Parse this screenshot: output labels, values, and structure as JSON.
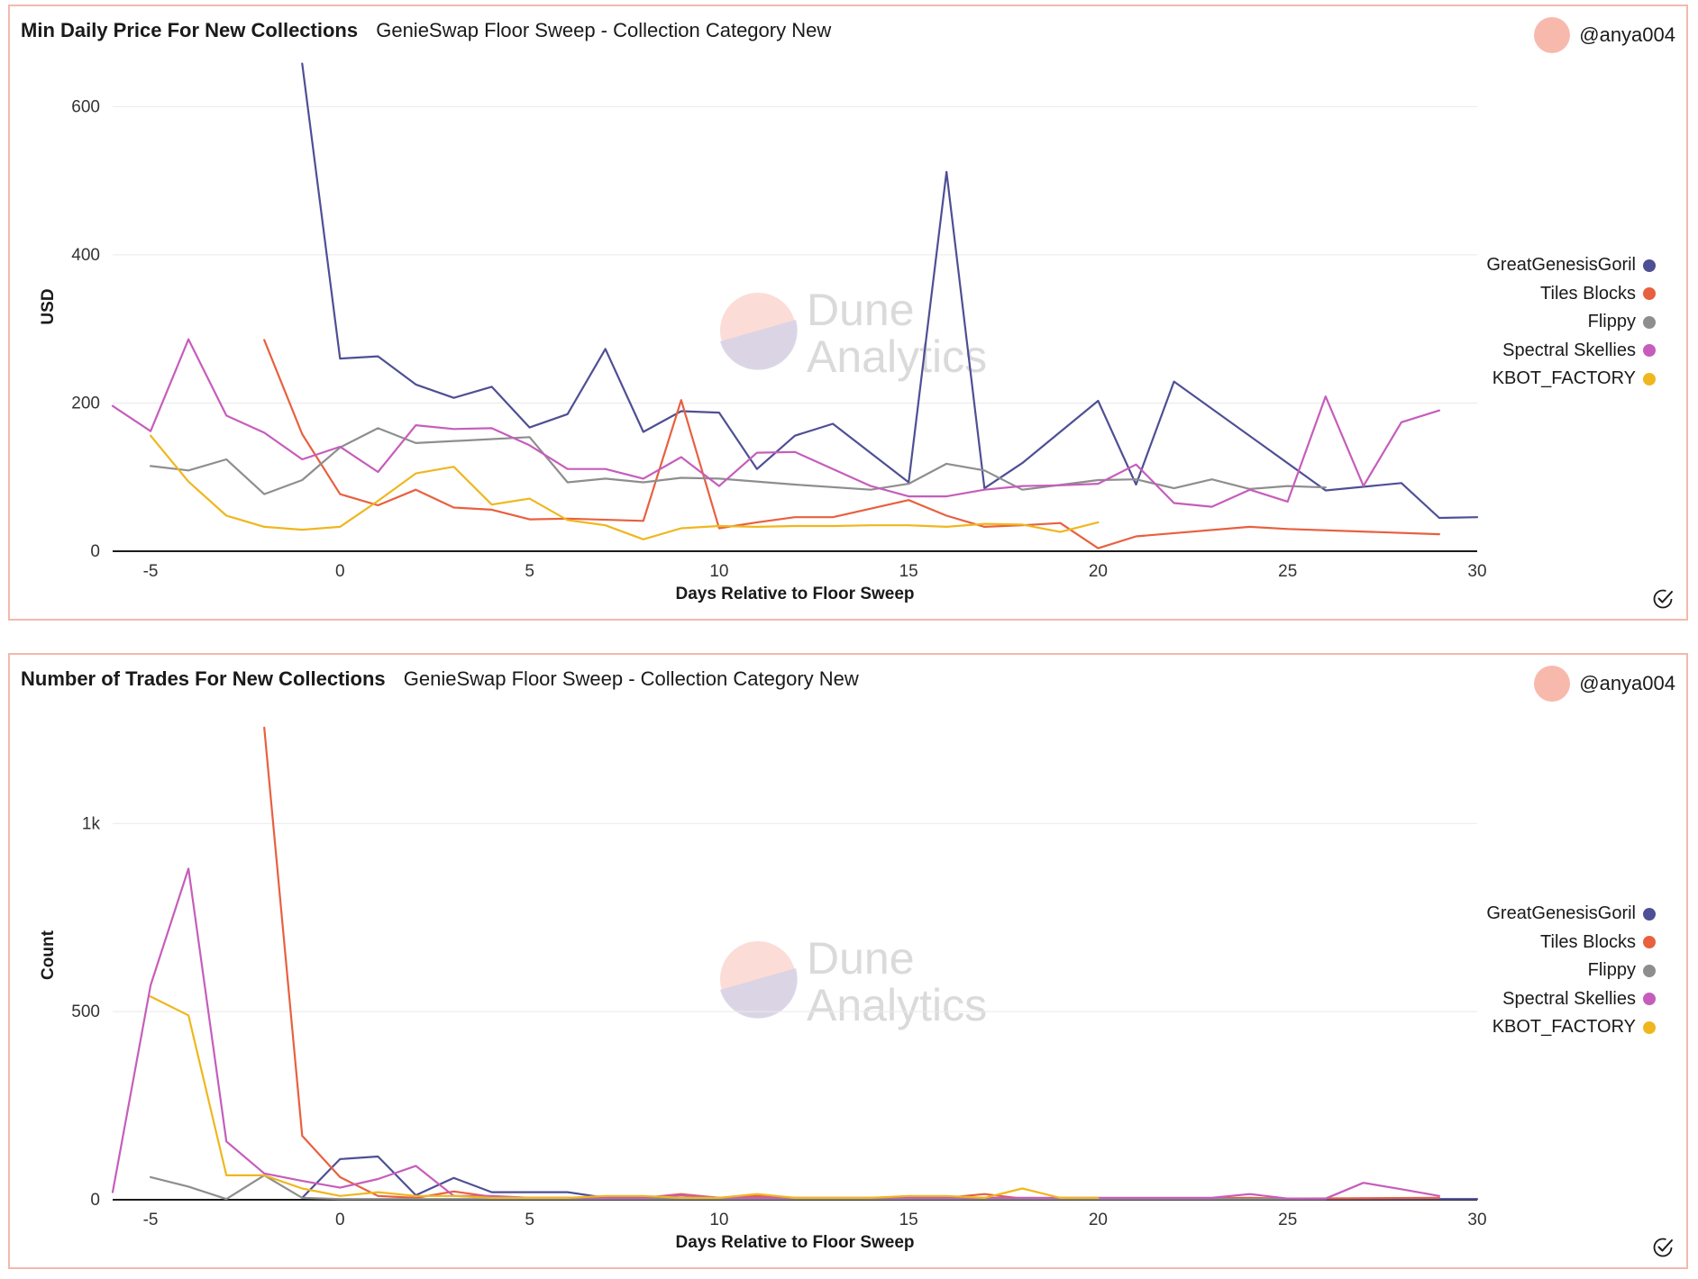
{
  "author": "@anya004",
  "watermark": {
    "line1": "Dune",
    "line2": "Analytics"
  },
  "colors": {
    "GreatGenesisGoril": "#4e4f94",
    "Tiles Blocks": "#e8603f",
    "Flippy": "#8e8e8e",
    "Spectral Skellies": "#c65dbb",
    "KBOT_FACTORY": "#efb71e",
    "avatar": "#f8b9ad",
    "border": "#f4b8ad"
  },
  "panels": [
    {
      "title": "Min Daily Price For New Collections",
      "subtitle": "GenieSwap Floor Sweep - Collection Category New",
      "legend": [
        "GreatGenesisGoril",
        "Tiles Blocks",
        "Flippy",
        "Spectral Skellies",
        "KBOT_FACTORY"
      ]
    },
    {
      "title": "Number of Trades For New Collections",
      "subtitle": "GenieSwap Floor Sweep - Collection Category New",
      "legend": [
        "GreatGenesisGoril",
        "Tiles Blocks",
        "Flippy",
        "Spectral Skellies",
        "KBOT_FACTORY"
      ]
    }
  ],
  "chart_data": [
    {
      "type": "line",
      "title": "Min Daily Price For New Collections",
      "xlabel": "Days Relative to Floor Sweep",
      "ylabel": "USD",
      "xlim": [
        -6,
        30
      ],
      "ylim": [
        0,
        660
      ],
      "xticks": [
        -5,
        0,
        5,
        10,
        15,
        20,
        25,
        30
      ],
      "xtick_labels": [
        "-5",
        "0",
        "5",
        "10",
        "15",
        "20",
        "25",
        "30"
      ],
      "yticks": [
        0,
        200,
        400,
        600
      ],
      "ytick_labels": [
        "0",
        "200",
        "400",
        "600"
      ],
      "grid": true,
      "series": [
        {
          "name": "GreatGenesisGoril",
          "x": [
            -1,
            0,
            1,
            2,
            3,
            4,
            5,
            6,
            7,
            8,
            9,
            10,
            11,
            12,
            13,
            15,
            16,
            17,
            18,
            20,
            21,
            22,
            26,
            28,
            29,
            30
          ],
          "values": [
            658,
            260,
            263,
            225,
            207,
            222,
            167,
            185,
            273,
            161,
            189,
            187,
            111,
            156,
            172,
            93,
            512,
            85,
            119,
            203,
            90,
            229,
            82,
            92,
            45,
            46
          ]
        },
        {
          "name": "Tiles Blocks",
          "x": [
            -2,
            -1,
            0,
            1,
            2,
            3,
            4,
            5,
            6,
            8,
            9,
            10,
            11,
            12,
            13,
            15,
            16,
            17,
            18,
            19,
            20,
            21,
            24,
            25,
            29
          ],
          "values": [
            285,
            158,
            77,
            62,
            83,
            59,
            56,
            43,
            44,
            41,
            204,
            31,
            39,
            46,
            46,
            69,
            48,
            33,
            35,
            38,
            4,
            20,
            33,
            30,
            23
          ]
        },
        {
          "name": "Flippy",
          "x": [
            -5,
            -4,
            -3,
            -2,
            -1,
            0,
            1,
            2,
            5,
            6,
            7,
            8,
            9,
            10,
            12,
            14,
            15,
            16,
            17,
            18,
            20,
            21,
            22,
            23,
            24,
            25,
            26
          ],
          "values": [
            115,
            109,
            124,
            77,
            96,
            140,
            166,
            146,
            154,
            93,
            98,
            93,
            99,
            98,
            90,
            83,
            91,
            118,
            109,
            83,
            96,
            97,
            85,
            97,
            84,
            88,
            86
          ]
        },
        {
          "name": "Spectral Skellies",
          "x": [
            -6,
            -5,
            -4,
            -3,
            -2,
            -1,
            0,
            1,
            2,
            3,
            4,
            5,
            6,
            7,
            8,
            9,
            10,
            11,
            12,
            14,
            15,
            16,
            17,
            18,
            19,
            20,
            21,
            22,
            23,
            24,
            25,
            26,
            27,
            28,
            29
          ],
          "values": [
            196,
            162,
            286,
            183,
            160,
            124,
            141,
            107,
            170,
            165,
            166,
            143,
            111,
            111,
            98,
            127,
            88,
            133,
            134,
            88,
            74,
            74,
            83,
            88,
            89,
            91,
            117,
            65,
            60,
            83,
            67,
            209,
            88,
            174,
            190
          ]
        },
        {
          "name": "KBOT_FACTORY",
          "x": [
            -5,
            -4,
            -3,
            -2,
            -1,
            0,
            1,
            2,
            3,
            4,
            5,
            6,
            7,
            8,
            9,
            10,
            11,
            12,
            13,
            14,
            15,
            16,
            17,
            18,
            19,
            20
          ],
          "values": [
            156,
            94,
            48,
            33,
            29,
            33,
            68,
            105,
            114,
            63,
            71,
            42,
            35,
            16,
            31,
            34,
            33,
            34,
            34,
            35,
            35,
            33,
            37,
            36,
            26,
            39
          ]
        }
      ]
    },
    {
      "type": "line",
      "title": "Number of Trades For New Collections",
      "xlabel": "Days Relative to Floor Sweep",
      "ylabel": "Count",
      "xlim": [
        -6,
        30
      ],
      "ylim": [
        0,
        1300
      ],
      "xticks": [
        -5,
        0,
        5,
        10,
        15,
        20,
        25,
        30
      ],
      "xtick_labels": [
        "-5",
        "0",
        "5",
        "10",
        "15",
        "20",
        "25",
        "30"
      ],
      "yticks": [
        0,
        500,
        1000
      ],
      "ytick_labels": [
        "0",
        "500",
        "1k"
      ],
      "grid": true,
      "series": [
        {
          "name": "GreatGenesisGoril",
          "x": [
            -1,
            0,
            1,
            2,
            3,
            4,
            5,
            6,
            7,
            8,
            10,
            12,
            15,
            20,
            25,
            30
          ],
          "values": [
            5,
            108,
            115,
            12,
            58,
            20,
            20,
            20,
            5,
            5,
            5,
            3,
            3,
            2,
            2,
            2
          ]
        },
        {
          "name": "Tiles Blocks",
          "x": [
            -2,
            -1,
            0,
            1,
            2,
            3,
            4,
            5,
            6,
            8,
            9,
            10,
            11,
            12,
            13,
            15,
            16,
            17,
            18,
            19,
            20,
            21,
            24,
            25,
            29
          ],
          "values": [
            1255,
            170,
            60,
            10,
            5,
            22,
            8,
            5,
            5,
            5,
            15,
            5,
            10,
            5,
            3,
            5,
            5,
            15,
            3,
            3,
            3,
            3,
            5,
            3,
            5
          ]
        },
        {
          "name": "Flippy",
          "x": [
            -5,
            -4,
            -3,
            -2,
            -1,
            0,
            1,
            2,
            5,
            6,
            7,
            8,
            9,
            10,
            12,
            14,
            15,
            16,
            17,
            18,
            20,
            21,
            22,
            23,
            24,
            25,
            26
          ],
          "values": [
            60,
            35,
            2,
            65,
            5,
            2,
            2,
            2,
            2,
            2,
            2,
            2,
            2,
            2,
            2,
            2,
            2,
            2,
            2,
            2,
            2,
            2,
            2,
            2,
            2,
            2,
            2
          ]
        },
        {
          "name": "Spectral Skellies",
          "x": [
            -6,
            -5,
            -4,
            -3,
            -2,
            -1,
            0,
            1,
            2,
            3,
            4,
            5,
            6,
            7,
            8,
            9,
            10,
            11,
            12,
            14,
            15,
            16,
            17,
            18,
            19,
            20,
            21,
            22,
            23,
            24,
            25,
            26,
            27,
            28,
            29
          ],
          "values": [
            20,
            570,
            880,
            155,
            70,
            50,
            32,
            55,
            90,
            10,
            10,
            5,
            5,
            5,
            5,
            12,
            5,
            5,
            5,
            5,
            5,
            5,
            5,
            5,
            5,
            5,
            5,
            5,
            5,
            15,
            3,
            3,
            45,
            28,
            10
          ]
        },
        {
          "name": "KBOT_FACTORY",
          "x": [
            -5,
            -4,
            -3,
            -2,
            -1,
            0,
            1,
            2,
            3,
            4,
            5,
            6,
            7,
            8,
            9,
            10,
            11,
            12,
            13,
            14,
            15,
            16,
            17,
            18,
            19,
            20
          ],
          "values": [
            540,
            490,
            65,
            65,
            30,
            10,
            20,
            10,
            10,
            5,
            5,
            5,
            10,
            10,
            5,
            5,
            15,
            5,
            5,
            5,
            10,
            10,
            5,
            30,
            5,
            5
          ]
        }
      ]
    }
  ]
}
